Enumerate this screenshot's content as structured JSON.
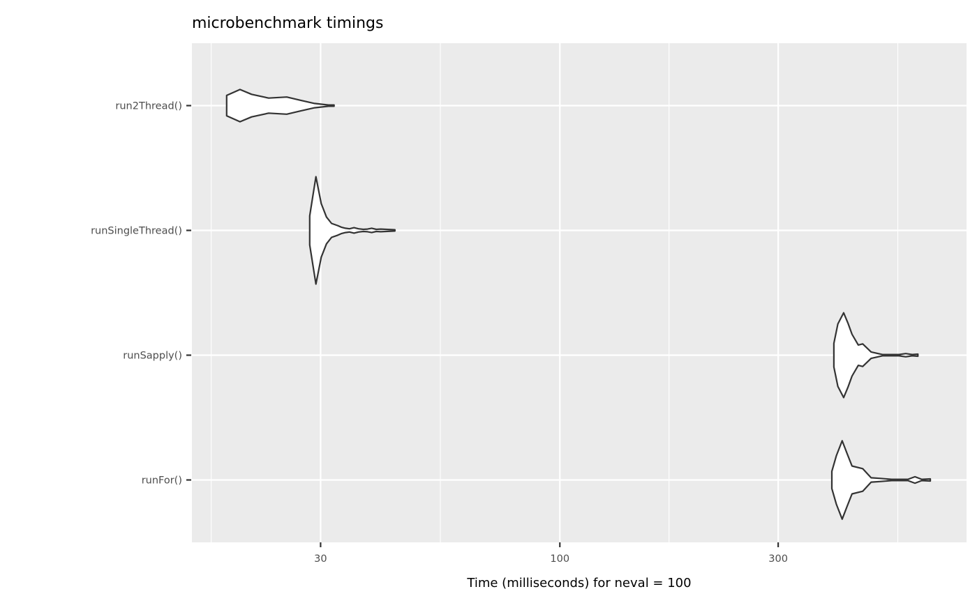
{
  "chart_data": {
    "type": "violin",
    "title": "microbenchmark timings",
    "xlabel": "Time (milliseconds) for neval = 100",
    "ylabel": "",
    "x_scale": "log10",
    "xlim": [
      15.7,
      774
    ],
    "x_breaks": [
      30,
      100,
      300
    ],
    "x_tick_labels": [
      "30",
      "100",
      "300"
    ],
    "x_minor_breaks": [
      17.3,
      54.8,
      173.2,
      547.7
    ],
    "grid": true,
    "panel_background": "#ebebeb",
    "grid_color": "#ffffff",
    "violin_fill": "#ffffff",
    "violin_stroke": "#333333",
    "categories": [
      "run2Thread()",
      "runSingleThread()",
      "runSapply()",
      "runFor()"
    ],
    "series": [
      {
        "category": "run2Thread()",
        "time_ms": [
          18.7,
          20.0,
          21.2,
          23.1,
          25.3,
          27.1,
          29.1,
          31.2,
          32.1
        ],
        "relative_density": [
          0.19,
          0.3,
          0.21,
          0.14,
          0.16,
          0.1,
          0.04,
          0.012,
          0.012
        ]
      },
      {
        "category": "runSingleThread()",
        "time_ms": [
          28.4,
          28.8,
          29.3,
          29.7,
          30.1,
          30.9,
          31.7,
          32.7,
          33.3,
          34.0,
          34.7,
          35.5,
          36.3,
          37.2,
          38.0,
          38.8,
          39.7,
          40.6,
          43.6
        ],
        "relative_density": [
          0.27,
          0.6,
          1.0,
          0.75,
          0.5,
          0.25,
          0.13,
          0.09,
          0.06,
          0.04,
          0.03,
          0.05,
          0.03,
          0.02,
          0.025,
          0.04,
          0.02,
          0.025,
          0.012
        ]
      },
      {
        "category": "runSapply()",
        "time_ms": [
          397,
          405,
          417,
          426,
          435,
          449,
          459,
          479,
          507,
          551,
          570,
          589,
          606
        ],
        "relative_density": [
          0.22,
          0.58,
          0.79,
          0.6,
          0.39,
          0.19,
          0.21,
          0.06,
          0.012,
          0.012,
          0.03,
          0.012,
          0.02
        ]
      },
      {
        "category": "runFor()",
        "time_ms": [
          393,
          402,
          414,
          424,
          435,
          459,
          479,
          500,
          531,
          576,
          597,
          618,
          645
        ],
        "relative_density": [
          0.16,
          0.45,
          0.73,
          0.5,
          0.26,
          0.21,
          0.04,
          0.03,
          0.012,
          0.012,
          0.06,
          0.012,
          0.02
        ]
      }
    ]
  }
}
